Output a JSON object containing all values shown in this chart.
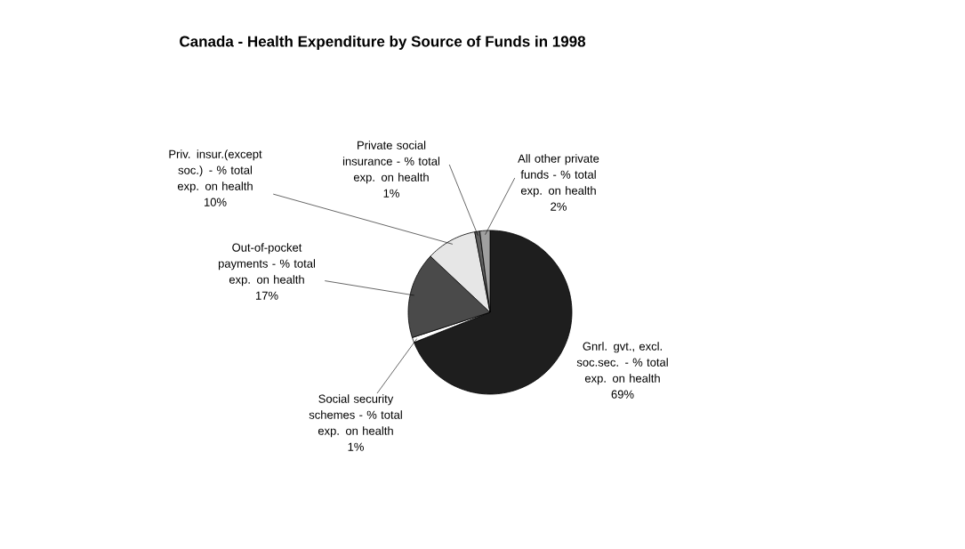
{
  "chart_data": {
    "type": "pie",
    "title": "Canada - Health Expenditure by Source of Funds in 1998",
    "categories": [
      "Gnrl. gvt., excl. soc.sec. - % total exp. on health",
      "Social security schemes - % total exp. on health",
      "Out-of-pocket payments - % total exp. on health",
      "Priv. insur.(except soc.) - % total exp. on health",
      "Private social insurance - % total exp. on health",
      "All other private funds - % total exp. on health"
    ],
    "values": [
      69,
      1,
      17,
      10,
      1,
      2
    ],
    "value_labels": [
      "69%",
      "1%",
      "17%",
      "10%",
      "1%",
      "2%"
    ],
    "colors": [
      "#1e1e1e",
      "#ffffff",
      "#4a4a4a",
      "#e6e6e6",
      "#606060",
      "#a0a0a0"
    ]
  }
}
